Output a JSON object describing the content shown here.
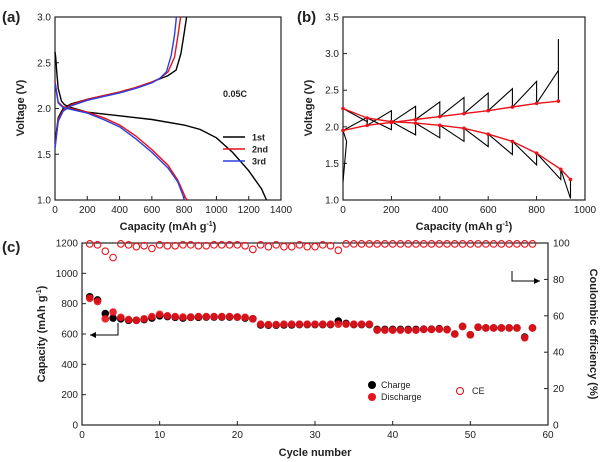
{
  "colors": {
    "black": "#000000",
    "red": "#e8121b",
    "blue": "#2b3ee0",
    "axis": "#222222"
  },
  "chart_data": [
    {
      "id": "a",
      "panel_label": "(a)",
      "type": "line",
      "xlabel": "Capacity (mAh g",
      "xlabel_sup": "-1",
      "xlabel_tail": ")",
      "ylabel": "Voltage (V)",
      "xlim": [
        0,
        1400
      ],
      "ylim": [
        1.0,
        3.0
      ],
      "xticks": [
        "0",
        "200",
        "400",
        "600",
        "800",
        "1000",
        "1200",
        "1400"
      ],
      "yticks": [
        "1.0",
        "1.5",
        "2.0",
        "2.5",
        "3.0"
      ],
      "rate_label": "0.05C",
      "series": [
        {
          "name": "1st",
          "color": "#000000",
          "discharge": [
            [
              0,
              2.62
            ],
            [
              5,
              2.55
            ],
            [
              10,
              2.42
            ],
            [
              20,
              2.22
            ],
            [
              40,
              2.08
            ],
            [
              60,
              2.04
            ],
            [
              100,
              2.01
            ],
            [
              200,
              1.96
            ],
            [
              400,
              1.92
            ],
            [
              600,
              1.88
            ],
            [
              800,
              1.82
            ],
            [
              900,
              1.77
            ],
            [
              1000,
              1.68
            ],
            [
              1100,
              1.52
            ],
            [
              1200,
              1.32
            ],
            [
              1280,
              1.12
            ],
            [
              1310,
              1.0
            ]
          ],
          "charge": [
            [
              0,
              1.62
            ],
            [
              20,
              1.9
            ],
            [
              50,
              2.0
            ],
            [
              100,
              2.05
            ],
            [
              200,
              2.1
            ],
            [
              300,
              2.14
            ],
            [
              400,
              2.18
            ],
            [
              500,
              2.23
            ],
            [
              600,
              2.29
            ],
            [
              700,
              2.36
            ],
            [
              750,
              2.42
            ],
            [
              780,
              2.6
            ],
            [
              800,
              2.82
            ],
            [
              815,
              3.0
            ]
          ]
        },
        {
          "name": "2nd",
          "color": "#e8121b",
          "discharge": [
            [
              0,
              2.3
            ],
            [
              20,
              2.07
            ],
            [
              50,
              2.02
            ],
            [
              100,
              2.0
            ],
            [
              200,
              1.96
            ],
            [
              300,
              1.9
            ],
            [
              400,
              1.82
            ],
            [
              500,
              1.7
            ],
            [
              600,
              1.55
            ],
            [
              700,
              1.38
            ],
            [
              760,
              1.22
            ],
            [
              810,
              1.02
            ],
            [
              820,
              1.0
            ]
          ],
          "charge": [
            [
              0,
              1.58
            ],
            [
              20,
              1.88
            ],
            [
              50,
              1.98
            ],
            [
              100,
              2.04
            ],
            [
              200,
              2.1
            ],
            [
              300,
              2.14
            ],
            [
              400,
              2.18
            ],
            [
              500,
              2.23
            ],
            [
              600,
              2.29
            ],
            [
              650,
              2.33
            ],
            [
              700,
              2.4
            ],
            [
              740,
              2.56
            ],
            [
              760,
              2.78
            ],
            [
              778,
              3.0
            ]
          ]
        },
        {
          "name": "3rd",
          "color": "#2b3ee0",
          "discharge": [
            [
              0,
              2.28
            ],
            [
              20,
              2.06
            ],
            [
              50,
              2.01
            ],
            [
              100,
              1.99
            ],
            [
              200,
              1.95
            ],
            [
              300,
              1.88
            ],
            [
              400,
              1.8
            ],
            [
              500,
              1.67
            ],
            [
              600,
              1.52
            ],
            [
              700,
              1.35
            ],
            [
              760,
              1.2
            ],
            [
              795,
              1.04
            ],
            [
              800,
              1.0
            ]
          ],
          "charge": [
            [
              0,
              1.56
            ],
            [
              20,
              1.86
            ],
            [
              50,
              1.97
            ],
            [
              100,
              2.03
            ],
            [
              200,
              2.09
            ],
            [
              300,
              2.13
            ],
            [
              400,
              2.17
            ],
            [
              500,
              2.22
            ],
            [
              600,
              2.28
            ],
            [
              650,
              2.33
            ],
            [
              690,
              2.4
            ],
            [
              720,
              2.58
            ],
            [
              740,
              2.8
            ],
            [
              752,
              3.0
            ]
          ]
        }
      ]
    },
    {
      "id": "b",
      "panel_label": "(b)",
      "type": "line",
      "xlabel": "Capacity (mAh g",
      "xlabel_sup": "-1",
      "xlabel_tail": ")",
      "ylabel": "Voltage (V)",
      "xlim": [
        0,
        1000
      ],
      "ylim": [
        1.0,
        3.5
      ],
      "xticks": [
        "0",
        "200",
        "400",
        "600",
        "800",
        "1000"
      ],
      "yticks": [
        "1.0",
        "1.5",
        "2.0",
        "2.5",
        "3.0",
        "3.5"
      ],
      "gitt_charge_relaxed": [
        [
          0,
          1.95
        ],
        [
          100,
          2.02
        ],
        [
          200,
          2.06
        ],
        [
          300,
          2.1
        ],
        [
          400,
          2.14
        ],
        [
          500,
          2.18
        ],
        [
          600,
          2.22
        ],
        [
          700,
          2.27
        ],
        [
          800,
          2.32
        ],
        [
          890,
          2.35
        ]
      ],
      "gitt_discharge_relaxed": [
        [
          0,
          2.25
        ],
        [
          100,
          2.12
        ],
        [
          200,
          2.07
        ],
        [
          300,
          2.05
        ],
        [
          400,
          2.02
        ],
        [
          500,
          1.98
        ],
        [
          600,
          1.9
        ],
        [
          700,
          1.8
        ],
        [
          800,
          1.64
        ],
        [
          900,
          1.42
        ],
        [
          940,
          1.28
        ]
      ],
      "charge_overshoot": [
        0.18,
        0.2,
        0.22,
        0.24,
        0.26,
        0.28,
        0.3,
        0.35,
        0.45,
        0.55,
        0.85
      ],
      "discharge_undershoot": [
        0.18,
        0.16,
        0.18,
        0.2,
        0.22,
        0.25,
        0.28,
        0.32,
        0.36,
        0.4,
        0.25
      ]
    },
    {
      "id": "c",
      "panel_label": "(c)",
      "type": "scatter",
      "xlabel": "Cycle number",
      "ylabel": "Capacity (mAh g",
      "ylabel_sup": "-1",
      "ylabel_tail": ")",
      "ylabel_right": "Coulombic efficiency (%)",
      "xlim": [
        0,
        60
      ],
      "ylim": [
        0,
        1200
      ],
      "ylim_right": [
        0,
        100
      ],
      "xticks": [
        "0",
        "10",
        "20",
        "30",
        "40",
        "50",
        "60"
      ],
      "yticks": [
        "0",
        "200",
        "400",
        "600",
        "800",
        "1000",
        "1200"
      ],
      "yticks_right": [
        "0",
        "20",
        "40",
        "60",
        "80",
        "100"
      ],
      "cycles": [
        1,
        2,
        3,
        4,
        5,
        6,
        7,
        8,
        9,
        10,
        11,
        12,
        13,
        14,
        15,
        16,
        17,
        18,
        19,
        20,
        21,
        22,
        23,
        24,
        25,
        26,
        27,
        28,
        29,
        30,
        31,
        32,
        33,
        34,
        35,
        36,
        37,
        38,
        39,
        40,
        41,
        42,
        43,
        44,
        45,
        46,
        47,
        48,
        49,
        50,
        51,
        52,
        53,
        54,
        55,
        56,
        57,
        58
      ],
      "charge": [
        845,
        825,
        735,
        705,
        700,
        690,
        690,
        695,
        705,
        720,
        715,
        710,
        705,
        710,
        710,
        712,
        712,
        712,
        712,
        712,
        705,
        700,
        660,
        658,
        658,
        660,
        660,
        662,
        662,
        662,
        662,
        662,
        685,
        670,
        662,
        662,
        662,
        630,
        630,
        630,
        630,
        630,
        630,
        632,
        632,
        635,
        630,
        600,
        650,
        595,
        645,
        640,
        640,
        640,
        640,
        640,
        580,
        640
      ],
      "discharge": [
        835,
        815,
        700,
        745,
        710,
        695,
        690,
        700,
        715,
        730,
        720,
        715,
        712,
        712,
        715,
        715,
        715,
        715,
        715,
        712,
        710,
        700,
        665,
        662,
        662,
        665,
        665,
        665,
        665,
        665,
        665,
        665,
        665,
        665,
        665,
        665,
        665,
        625,
        625,
        625,
        625,
        625,
        625,
        630,
        630,
        632,
        628,
        600,
        650,
        595,
        645,
        640,
        640,
        640,
        640,
        640,
        575,
        640
      ],
      "ce": [
        99.5,
        99,
        95.5,
        92,
        99.5,
        99,
        98,
        98.5,
        97,
        99,
        98.5,
        98.5,
        99,
        99,
        98.5,
        98.5,
        99,
        99,
        99,
        99,
        98.5,
        96.5,
        99,
        98,
        99,
        98,
        98,
        99,
        98,
        98,
        99,
        98.5,
        96,
        99.5,
        99.5,
        99.5,
        99.5,
        99.5,
        99.5,
        99.5,
        99.5,
        99.5,
        99.5,
        99.5,
        99.5,
        99.5,
        99.5,
        99.5,
        99.5,
        99.5,
        99.5,
        99.5,
        99.5,
        99.5,
        99.5,
        99.5,
        99.5,
        99.5
      ],
      "legend": {
        "charge": "Charge",
        "discharge": "Discharge",
        "ce": "CE"
      }
    }
  ]
}
